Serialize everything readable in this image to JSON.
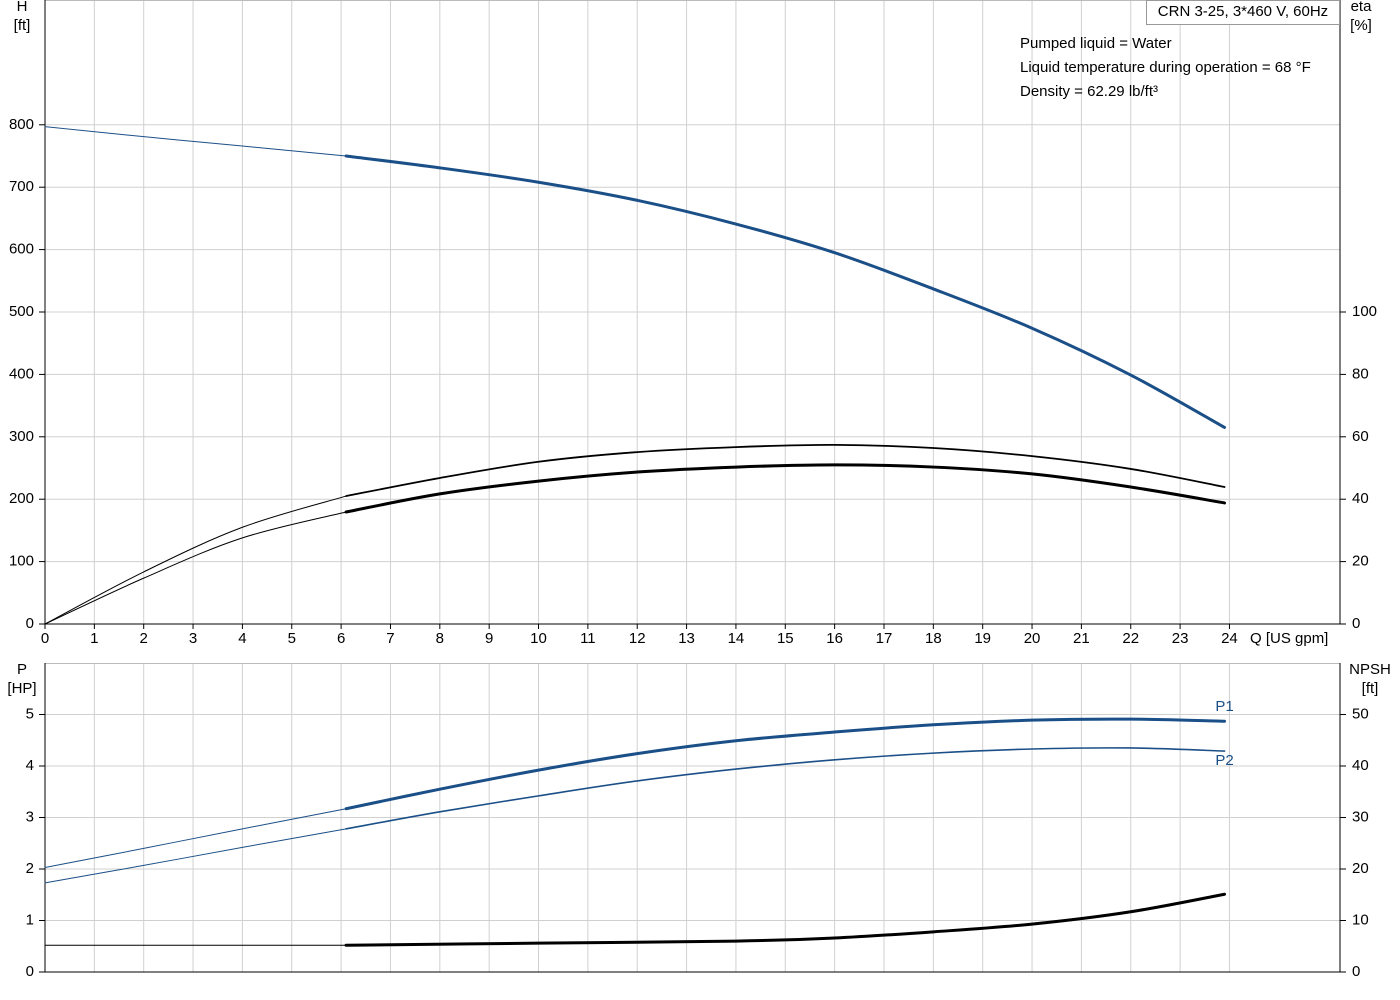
{
  "chart_data": [
    {
      "type": "line",
      "title": "CRN 3-25, 3*460 V, 60Hz",
      "annotations": [
        "Pumped liquid = Water",
        "Liquid temperature during operation = 68 °F",
        "Density = 62.29 lb/ft³"
      ],
      "ylabel": [
        "H",
        "[ft]"
      ],
      "y2label": [
        "eta",
        "[%]"
      ],
      "xlabel": "Q [US gpm]",
      "xlim": [
        0,
        26.24
      ],
      "xticks": [
        0,
        1,
        2,
        3,
        4,
        5,
        6,
        7,
        8,
        9,
        10,
        11,
        12,
        13,
        14,
        15,
        16,
        17,
        18,
        19,
        20,
        21,
        22,
        23,
        24
      ],
      "xtick_labels": true,
      "ylim": [
        0,
        1000
      ],
      "yticks": [
        0,
        100,
        200,
        300,
        400,
        500,
        600,
        700,
        800
      ],
      "y2lim": [
        0,
        200
      ],
      "y2ticks": [
        0,
        20,
        40,
        60,
        80,
        100
      ],
      "grid": true,
      "series": [
        {
          "color": "#1b4f88",
          "width": 1,
          "x": [
            0,
            2,
            4,
            6.1
          ],
          "values": [
            797,
            781,
            766,
            750
          ]
        },
        {
          "color": "#1b4f88",
          "width": 3,
          "x": [
            6.1,
            8,
            10,
            12,
            14,
            16,
            18,
            20,
            22,
            23.9
          ],
          "values": [
            750,
            731,
            708,
            679,
            641,
            595,
            537,
            474,
            399,
            315
          ]
        },
        {
          "color": "#000000",
          "width": 1,
          "axis": "y2",
          "x": [
            0,
            2,
            4,
            6.1
          ],
          "values": [
            0,
            16.7,
            31,
            41
          ]
        },
        {
          "color": "#000000",
          "width": 1.8,
          "axis": "y2",
          "x": [
            6.1,
            8,
            10,
            12,
            14,
            16,
            18,
            20,
            22,
            23.9
          ],
          "values": [
            41,
            46.8,
            52,
            55.1,
            56.7,
            57.4,
            56.4,
            53.8,
            49.7,
            43.9
          ]
        },
        {
          "color": "#000000",
          "width": 1,
          "axis": "y2",
          "x": [
            0,
            2,
            4,
            6.1
          ],
          "values": [
            0,
            14.7,
            27.6,
            35.9
          ]
        },
        {
          "color": "#000000",
          "width": 3,
          "axis": "y2",
          "x": [
            6.1,
            8,
            10,
            12,
            14,
            16,
            18,
            20,
            22,
            23.9
          ],
          "values": [
            35.9,
            41.7,
            45.8,
            48.7,
            50.3,
            51,
            50.3,
            48.1,
            43.9,
            38.8
          ]
        }
      ]
    },
    {
      "type": "line",
      "ylabel": [
        "P",
        "[HP]"
      ],
      "y2label": [
        "NPSH",
        "[ft]"
      ],
      "xlim": [
        0,
        26.24
      ],
      "xticks": [
        0,
        1,
        2,
        3,
        4,
        5,
        6,
        7,
        8,
        9,
        10,
        11,
        12,
        13,
        14,
        15,
        16,
        17,
        18,
        19,
        20,
        21,
        22,
        23,
        24
      ],
      "xtick_labels": false,
      "ylim": [
        0,
        6
      ],
      "yticks": [
        0,
        1,
        2,
        3,
        4,
        5
      ],
      "y2lim": [
        0,
        60
      ],
      "y2ticks": [
        0,
        10,
        20,
        30,
        40,
        50
      ],
      "grid": true,
      "series": [
        {
          "color": "#1b4f88",
          "width": 1,
          "x": [
            0,
            2,
            4,
            6.1
          ],
          "values": [
            2.03,
            2.4,
            2.78,
            3.17
          ]
        },
        {
          "name": "P1",
          "label_side": "above",
          "color": "#1b4f88",
          "width": 3,
          "x": [
            6.1,
            8,
            10,
            12,
            14,
            16,
            18,
            20,
            22,
            23.9
          ],
          "values": [
            3.17,
            3.55,
            3.92,
            4.24,
            4.49,
            4.66,
            4.8,
            4.89,
            4.91,
            4.87
          ]
        },
        {
          "color": "#1b4f88",
          "width": 1,
          "x": [
            0,
            2,
            4,
            6.1
          ],
          "values": [
            1.73,
            2.07,
            2.42,
            2.78
          ]
        },
        {
          "name": "P2",
          "label_side": "below",
          "color": "#1b4f88",
          "width": 1.6,
          "x": [
            6.1,
            8,
            10,
            12,
            14,
            16,
            18,
            20,
            22,
            23.9
          ],
          "values": [
            2.78,
            3.11,
            3.42,
            3.71,
            3.94,
            4.12,
            4.25,
            4.33,
            4.35,
            4.29
          ]
        },
        {
          "color": "#000000",
          "width": 1,
          "axis": "y2",
          "x": [
            0,
            6.1
          ],
          "values": [
            5.2,
            5.2
          ]
        },
        {
          "color": "#000000",
          "width": 3,
          "axis": "y2",
          "x": [
            6.1,
            10,
            14,
            16,
            18,
            20,
            22,
            23.9
          ],
          "values": [
            5.2,
            5.6,
            6.0,
            6.6,
            7.8,
            9.3,
            11.7,
            15.1
          ]
        }
      ]
    }
  ]
}
